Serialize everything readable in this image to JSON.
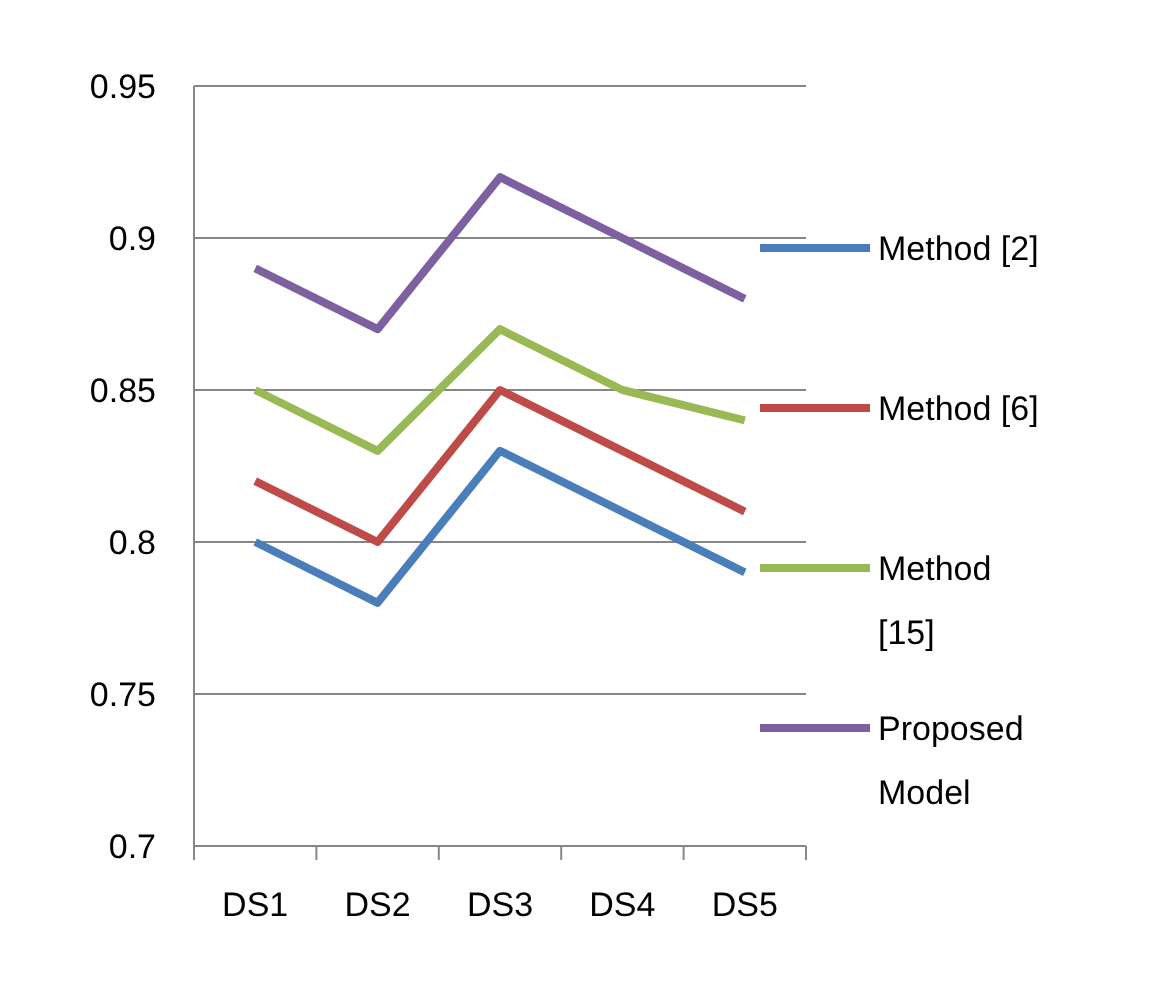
{
  "chart_data": {
    "type": "line",
    "categories": [
      "DS1",
      "DS2",
      "DS3",
      "DS4",
      "DS5"
    ],
    "series": [
      {
        "name": "Method [2]",
        "color": "#4a7ebb",
        "values": [
          0.8,
          0.78,
          0.83,
          0.81,
          0.79
        ]
      },
      {
        "name": "Method [6]",
        "color": "#be4b48",
        "values": [
          0.82,
          0.8,
          0.85,
          0.83,
          0.81
        ]
      },
      {
        "name": "Method [15]",
        "color": "#98b954",
        "values": [
          0.85,
          0.83,
          0.87,
          0.85,
          0.84
        ]
      },
      {
        "name": "Proposed Model",
        "color": "#7d60a0",
        "values": [
          0.89,
          0.87,
          0.92,
          0.9,
          0.88
        ]
      }
    ],
    "ylim": [
      0.7,
      0.95
    ],
    "yticks": [
      0.7,
      0.75,
      0.8,
      0.85,
      0.9,
      0.95
    ],
    "grid": "y",
    "legend": "right",
    "marker": "none",
    "line_style": "solid"
  }
}
